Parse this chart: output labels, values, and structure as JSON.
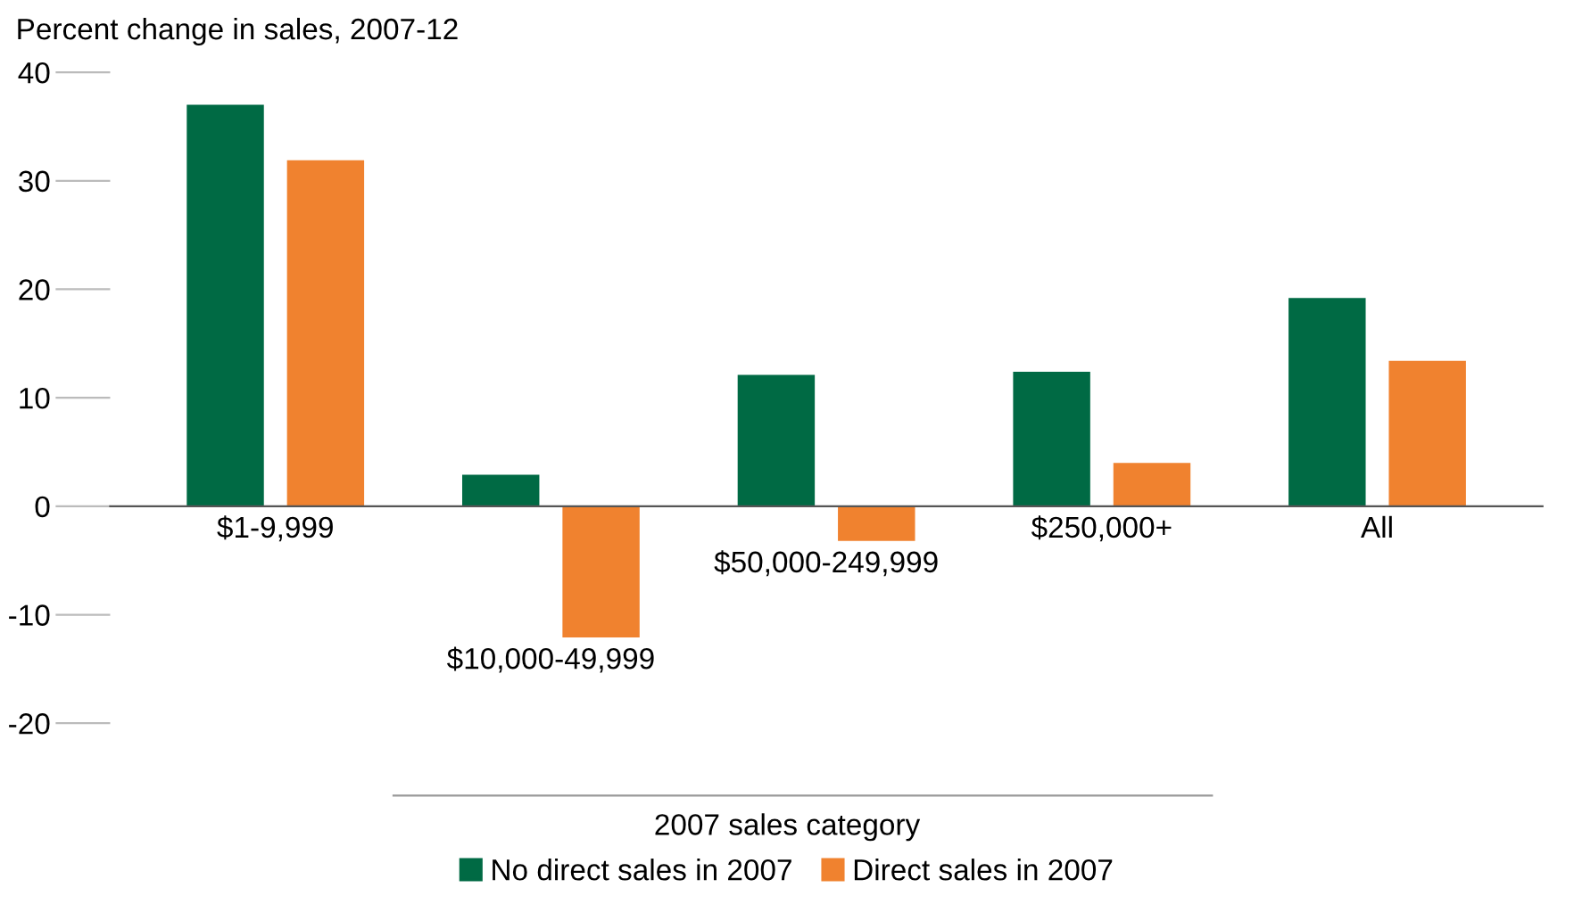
{
  "chart_data": {
    "type": "bar",
    "ylabel": "Percent change in sales, 2007-12",
    "xlabel": "2007 sales category",
    "categories": [
      "$1-9,999",
      "$10,000-49,999",
      "$50,000-249,999",
      "$250,000+",
      "All"
    ],
    "series": [
      {
        "name": "No direct sales in 2007",
        "color": "#006a44",
        "values": [
          37,
          2.9,
          12.1,
          12.4,
          19.2
        ]
      },
      {
        "name": "Direct sales in 2007",
        "color": "#f0822f",
        "values": [
          31.9,
          -12.1,
          -3.2,
          4.0,
          13.4
        ]
      }
    ],
    "ylim": [
      -20,
      40
    ],
    "yticks": [
      -20,
      -10,
      0,
      10,
      20,
      30,
      40
    ],
    "grid": false,
    "legend": "bottom"
  }
}
